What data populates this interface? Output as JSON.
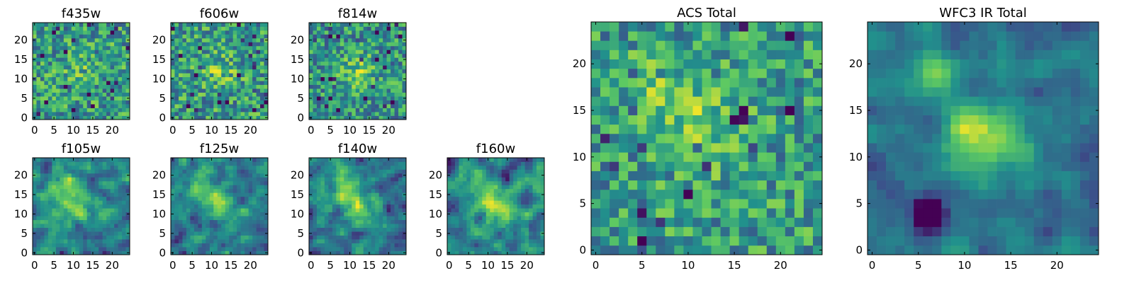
{
  "figure": {
    "colormap": "viridis",
    "colormap_stops": [
      "#440154",
      "#3b528b",
      "#21918c",
      "#5ec962",
      "#fde725"
    ],
    "axis_color": "#000000",
    "background": "#ffffff"
  },
  "chart_data": [
    {
      "type": "heatmap",
      "title": "f435w",
      "grid_size": 25,
      "x_ticks": [
        0,
        5,
        10,
        15,
        20
      ],
      "y_ticks": [
        0,
        5,
        10,
        15,
        20
      ],
      "xlim": [
        -0.5,
        24.5
      ],
      "ylim": [
        -0.5,
        24.5
      ],
      "colormap": "viridis",
      "pattern": "noise, faint central source near (12, 12)",
      "blobs": [
        {
          "x": 12,
          "y": 12,
          "sigma": 3,
          "amp": 0.12
        }
      ],
      "base": 0.55,
      "noise": 0.28,
      "smooth": 0,
      "seed": 11
    },
    {
      "type": "heatmap",
      "title": "f606w",
      "grid_size": 25,
      "x_ticks": [
        0,
        5,
        10,
        15,
        20
      ],
      "y_ticks": [
        0,
        5,
        10,
        15,
        20
      ],
      "xlim": [
        -0.5,
        24.5
      ],
      "ylim": [
        -0.5,
        24.5
      ],
      "colormap": "viridis",
      "pattern": "noise, faint source near (12, 12)",
      "blobs": [
        {
          "x": 12,
          "y": 12,
          "sigma": 3,
          "amp": 0.18
        }
      ],
      "base": 0.55,
      "noise": 0.28,
      "smooth": 0,
      "seed": 22
    },
    {
      "type": "heatmap",
      "title": "f814w",
      "grid_size": 25,
      "x_ticks": [
        0,
        5,
        10,
        15,
        20
      ],
      "y_ticks": [
        0,
        5,
        10,
        15,
        20
      ],
      "xlim": [
        -0.5,
        24.5
      ],
      "ylim": [
        -0.5,
        24.5
      ],
      "colormap": "viridis",
      "pattern": "noise, source near (12, 12)",
      "blobs": [
        {
          "x": 12,
          "y": 12,
          "sigma": 3,
          "amp": 0.25
        }
      ],
      "base": 0.52,
      "noise": 0.27,
      "smooth": 0,
      "seed": 33
    },
    {
      "type": "heatmap",
      "title": "f105w",
      "grid_size": 25,
      "x_ticks": [
        0,
        5,
        10,
        15,
        20
      ],
      "y_ticks": [
        0,
        5,
        10,
        15,
        20
      ],
      "xlim": [
        -0.5,
        24.5
      ],
      "ylim": [
        -0.5,
        24.5
      ],
      "colormap": "viridis",
      "pattern": "smooth, diffuse bright region from (7, 17) to (12, 12)",
      "blobs": [
        {
          "x": 7,
          "y": 17,
          "sigma": 3,
          "amp": 0.3
        },
        {
          "x": 12,
          "y": 12,
          "sigma": 3,
          "amp": 0.3
        }
      ],
      "base": 0.45,
      "noise": 0.25,
      "smooth": 1,
      "seed": 44
    },
    {
      "type": "heatmap",
      "title": "f125w",
      "grid_size": 25,
      "x_ticks": [
        0,
        5,
        10,
        15,
        20
      ],
      "y_ticks": [
        0,
        5,
        10,
        15,
        20
      ],
      "xlim": [
        -0.5,
        24.5
      ],
      "ylim": [
        -0.5,
        24.5
      ],
      "colormap": "viridis",
      "pattern": "smooth, bright source near (12, 12)",
      "blobs": [
        {
          "x": 7,
          "y": 17,
          "sigma": 3,
          "amp": 0.25
        },
        {
          "x": 12,
          "y": 12,
          "sigma": 3,
          "amp": 0.35
        }
      ],
      "base": 0.45,
      "noise": 0.25,
      "smooth": 1,
      "seed": 55
    },
    {
      "type": "heatmap",
      "title": "f140w",
      "grid_size": 25,
      "x_ticks": [
        0,
        5,
        10,
        15,
        20
      ],
      "y_ticks": [
        0,
        5,
        10,
        15,
        20
      ],
      "xlim": [
        -0.5,
        24.5
      ],
      "ylim": [
        -0.5,
        24.5
      ],
      "colormap": "viridis",
      "pattern": "smooth, source near (12, 12)",
      "blobs": [
        {
          "x": 7,
          "y": 17,
          "sigma": 3,
          "amp": 0.25
        },
        {
          "x": 12,
          "y": 12,
          "sigma": 3,
          "amp": 0.3
        }
      ],
      "base": 0.45,
      "noise": 0.25,
      "smooth": 1,
      "seed": 66
    },
    {
      "type": "heatmap",
      "title": "f160w",
      "grid_size": 25,
      "x_ticks": [
        0,
        5,
        10,
        15,
        20
      ],
      "y_ticks": [
        0,
        5,
        10,
        15,
        20
      ],
      "xlim": [
        -0.5,
        24.5
      ],
      "ylim": [
        -0.5,
        24.5
      ],
      "colormap": "viridis",
      "pattern": "smooth, bright source near (12, 12)",
      "blobs": [
        {
          "x": 7,
          "y": 17,
          "sigma": 3,
          "amp": 0.3
        },
        {
          "x": 12,
          "y": 12,
          "sigma": 3,
          "amp": 0.4
        }
      ],
      "base": 0.45,
      "noise": 0.25,
      "smooth": 1,
      "seed": 77
    },
    {
      "type": "heatmap",
      "title": "ACS Total",
      "grid_size": 25,
      "x_ticks": [
        0,
        5,
        10,
        15,
        20
      ],
      "y_ticks": [
        0,
        5,
        10,
        15,
        20
      ],
      "xlim": [
        -0.5,
        24.5
      ],
      "ylim": [
        -0.5,
        24.5
      ],
      "colormap": "viridis",
      "pattern": "noisy, brighter patches near (7, 17) and (12, 13)",
      "blobs": [
        {
          "x": 7,
          "y": 17,
          "sigma": 2.5,
          "amp": 0.2
        },
        {
          "x": 12,
          "y": 13,
          "sigma": 3,
          "amp": 0.22
        }
      ],
      "base": 0.55,
      "noise": 0.26,
      "smooth": 0,
      "seed": 88
    },
    {
      "type": "heatmap",
      "title": "WFC3 IR Total",
      "grid_size": 25,
      "x_ticks": [
        0,
        5,
        10,
        15,
        20
      ],
      "y_ticks": [
        0,
        5,
        10,
        15,
        20
      ],
      "xlim": [
        -0.5,
        24.5
      ],
      "ylim": [
        -0.5,
        24.5
      ],
      "colormap": "viridis",
      "pattern": "smooth, bright source centered near (12, 12), extension toward (7, 19), dark spot near (6, 4)",
      "blobs": [
        {
          "x": 7,
          "y": 19,
          "sigma": 2,
          "amp": 0.32
        },
        {
          "x": 12,
          "y": 12,
          "sigma": 3,
          "amp": 0.5
        },
        {
          "x": 6,
          "y": 4,
          "sigma": 1.3,
          "amp": -0.6
        }
      ],
      "base": 0.4,
      "noise": 0.16,
      "smooth": 1,
      "seed": 99
    }
  ]
}
